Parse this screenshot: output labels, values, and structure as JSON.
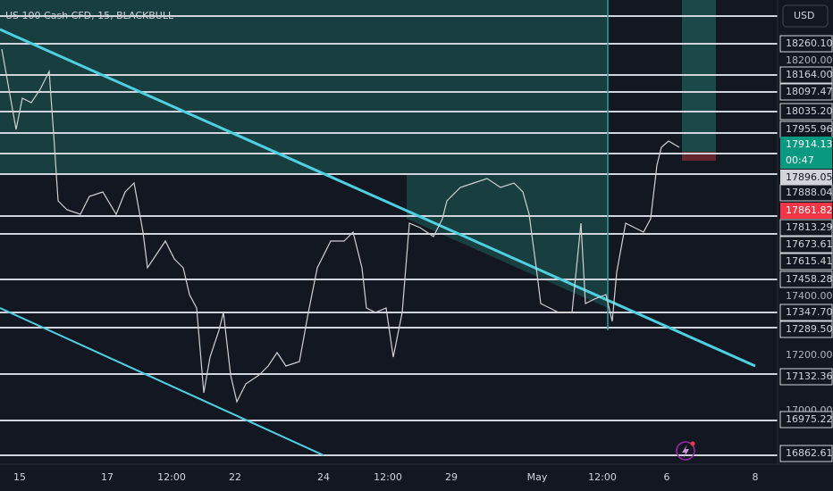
{
  "header": {
    "symbol": "US 100 Cash CFD, 15, BLACKBULL",
    "currency": "USD"
  },
  "price_axis": {
    "labels": [
      "18260.10",
      "18200.00",
      "18164.00",
      "18097.47",
      "18035.20",
      "17955.96",
      "17914.13",
      "17896.05",
      "17888.04",
      "17861.82",
      "17813.29",
      "17673.61",
      "17615.41",
      "17458.28",
      "17400.00",
      "17347.70",
      "17289.50",
      "17200.00",
      "17132.36",
      "17000.00",
      "16975.22",
      "16862.61"
    ],
    "countdown": "00:47"
  },
  "time_axis": {
    "labels": [
      "15",
      "17",
      "12:00",
      "22",
      "24",
      "12:00",
      "29",
      "May",
      "12:00",
      "6",
      "8"
    ]
  }
}
